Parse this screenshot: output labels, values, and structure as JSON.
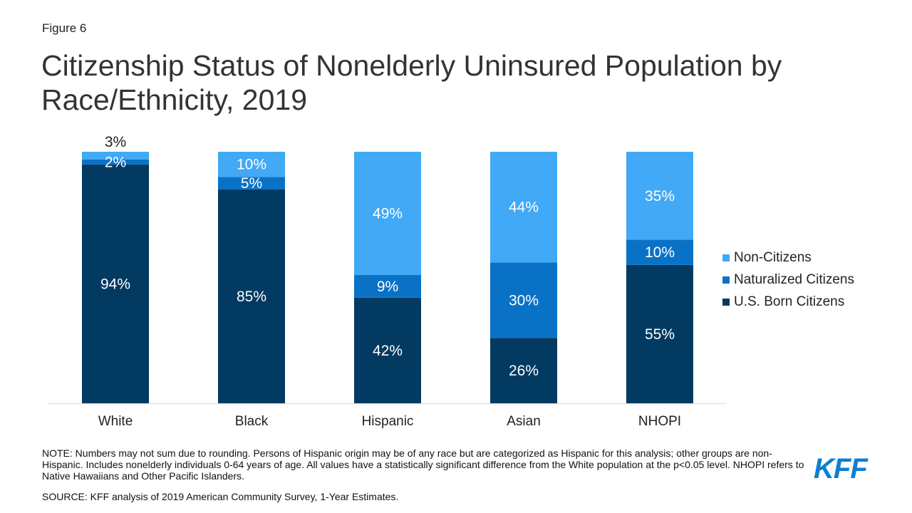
{
  "figure_label": "Figure 6",
  "title": "Citizenship Status of Nonelderly Uninsured Population by Race/Ethnicity, 2019",
  "note": "NOTE: Numbers may not sum due to rounding. Persons of Hispanic origin may be of any race but are categorized as Hispanic for this analysis; other groups are non-Hispanic. Includes nonelderly individuals 0-64 years of age. All values have a statistically significant difference from the White population at the p<0.05 level. NHOPI refers to Native Hawaiians and Other Pacific Islanders.",
  "source": "SOURCE: KFF analysis of 2019 American Community Survey, 1-Year Estimates.",
  "logo_text": "KFF",
  "colors": {
    "non_citizens": "#41a9f5",
    "naturalized": "#0a72c6",
    "us_born": "#023a62",
    "axis": "#d9d9d9"
  },
  "chart_data": {
    "type": "bar",
    "stacked": true,
    "categories": [
      "White",
      "Black",
      "Hispanic",
      "Asian",
      "NHOPI"
    ],
    "series": [
      {
        "name": "U.S. Born Citizens",
        "values": [
          94,
          85,
          42,
          26,
          55
        ],
        "labels": [
          "94%",
          "85%",
          "42%",
          "26%",
          "55%"
        ],
        "color_key": "us_born"
      },
      {
        "name": "Naturalized Citizens",
        "values": [
          2,
          5,
          9,
          30,
          10
        ],
        "labels": [
          "2%",
          "5%",
          "9%",
          "30%",
          "10%"
        ],
        "color_key": "naturalized"
      },
      {
        "name": "Non-Citizens",
        "values": [
          3,
          10,
          49,
          44,
          35
        ],
        "labels": [
          "3%",
          "10%",
          "49%",
          "44%",
          "35%"
        ],
        "color_key": "non_citizens"
      }
    ],
    "legend": [
      "Non-Citizens",
      "Naturalized Citizens",
      "U.S. Born Citizens"
    ],
    "legend_placement": "right",
    "ylim": [
      0,
      100
    ],
    "grid": false,
    "title": "Citizenship Status of Nonelderly Uninsured Population by Race/Ethnicity, 2019"
  }
}
